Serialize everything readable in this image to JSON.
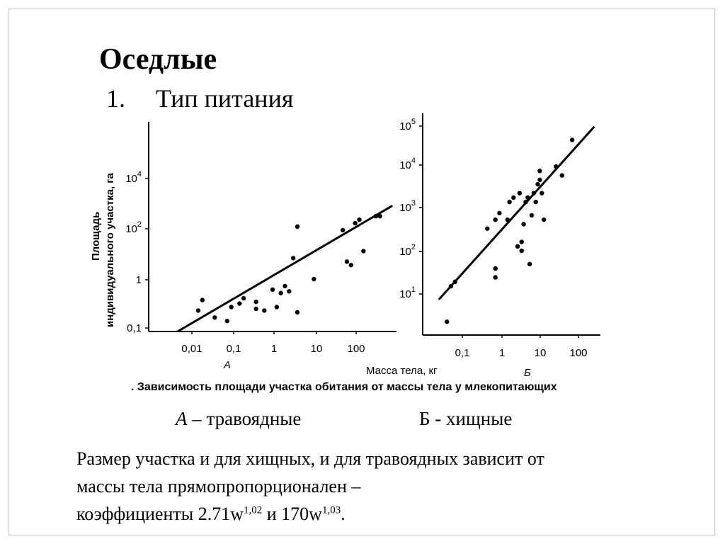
{
  "slide": {
    "title": "Оседлые",
    "subtitle_number": "1.",
    "subtitle_text": "Тип питания",
    "caption": ". Зависимость площади участка обитания от массы тела у млекопитающих",
    "legend_a_letter": "А",
    "legend_a_text": " – травоядные",
    "legend_b_letter": "Б",
    "legend_b_text": " - хищные",
    "body_line1": "Размер участка и для хищных, и для травоядных зависит от",
    "body_line2": "массы тела прямопропорционален –",
    "body_line3_prefix": "коэффициенты 2.71w",
    "body_exp1": "1,02",
    "body_mid": " и 170w",
    "body_exp2": "1,03",
    "body_end": "."
  },
  "chart_data": [
    {
      "type": "scatter",
      "panel_label": "А",
      "xlabel": "Масса тела, кг",
      "ylabel_line1": "Площадь",
      "ylabel_line2": "индивидуального участка, га",
      "x_ticks": [
        "0,01",
        "0,1",
        "1",
        "10",
        "100"
      ],
      "y_ticks": [
        {
          "base": "0,1",
          "exp": ""
        },
        {
          "base": "1",
          "exp": ""
        },
        {
          "base": "10",
          "exp": "2"
        },
        {
          "base": "10",
          "exp": "4"
        }
      ],
      "x_log_range": [
        -3.0,
        3.0
      ],
      "y_log_range": [
        -1.0,
        5.0
      ],
      "points_log": [
        [
          -1.8,
          -0.4
        ],
        [
          -1.7,
          -0.1
        ],
        [
          -1.4,
          -0.6
        ],
        [
          -1.1,
          -0.7
        ],
        [
          -1.0,
          -0.3
        ],
        [
          -0.8,
          -0.2
        ],
        [
          -0.7,
          -0.05
        ],
        [
          -0.4,
          -0.15
        ],
        [
          -0.4,
          -0.35
        ],
        [
          -0.2,
          -0.4
        ],
        [
          0.0,
          0.2
        ],
        [
          0.1,
          -0.3
        ],
        [
          0.2,
          0.1
        ],
        [
          0.3,
          0.3
        ],
        [
          0.4,
          0.15
        ],
        [
          0.5,
          1.1
        ],
        [
          0.6,
          -0.45
        ],
        [
          0.6,
          2.0
        ],
        [
          1.0,
          0.5
        ],
        [
          1.7,
          1.9
        ],
        [
          1.8,
          1.0
        ],
        [
          1.9,
          0.9
        ],
        [
          2.0,
          2.1
        ],
        [
          2.1,
          2.2
        ],
        [
          2.2,
          1.3
        ],
        [
          2.5,
          2.3
        ],
        [
          2.6,
          2.3
        ]
      ],
      "trend_log": [
        [
          -2.3,
          -1.0
        ],
        [
          2.9,
          2.6
        ]
      ]
    },
    {
      "type": "scatter",
      "panel_label": "Б",
      "x_ticks": [
        "0,1",
        "1",
        "10",
        "100"
      ],
      "y_ticks": [
        {
          "base": "10",
          "exp": "1"
        },
        {
          "base": "10",
          "exp": "2"
        },
        {
          "base": "10",
          "exp": "3"
        },
        {
          "base": "10",
          "exp": "4"
        },
        {
          "base": "10",
          "exp": "5"
        }
      ],
      "x_log_range": [
        -1.9,
        2.5
      ],
      "y_log_range": [
        0.0,
        5.0
      ],
      "points_log": [
        [
          -1.3,
          0.3
        ],
        [
          -1.2,
          1.1
        ],
        [
          -1.1,
          1.2
        ],
        [
          -0.3,
          2.4
        ],
        [
          -0.1,
          2.6
        ],
        [
          0.0,
          2.75
        ],
        [
          -0.1,
          1.3
        ],
        [
          -0.1,
          1.5
        ],
        [
          0.2,
          2.6
        ],
        [
          0.25,
          3.0
        ],
        [
          0.35,
          3.1
        ],
        [
          0.45,
          2.0
        ],
        [
          0.5,
          3.2
        ],
        [
          0.55,
          2.1
        ],
        [
          0.55,
          1.9
        ],
        [
          0.6,
          2.5
        ],
        [
          0.65,
          3.0
        ],
        [
          0.7,
          3.1
        ],
        [
          0.75,
          1.6
        ],
        [
          0.8,
          2.7
        ],
        [
          0.85,
          3.2
        ],
        [
          0.9,
          3.0
        ],
        [
          0.95,
          3.4
        ],
        [
          1.0,
          3.5
        ],
        [
          1.0,
          3.7
        ],
        [
          1.05,
          3.2
        ],
        [
          1.1,
          2.6
        ],
        [
          1.4,
          3.8
        ],
        [
          1.55,
          3.6
        ],
        [
          1.8,
          4.4
        ]
      ],
      "trend_log": [
        [
          -1.5,
          0.8
        ],
        [
          2.35,
          4.7
        ]
      ]
    }
  ]
}
